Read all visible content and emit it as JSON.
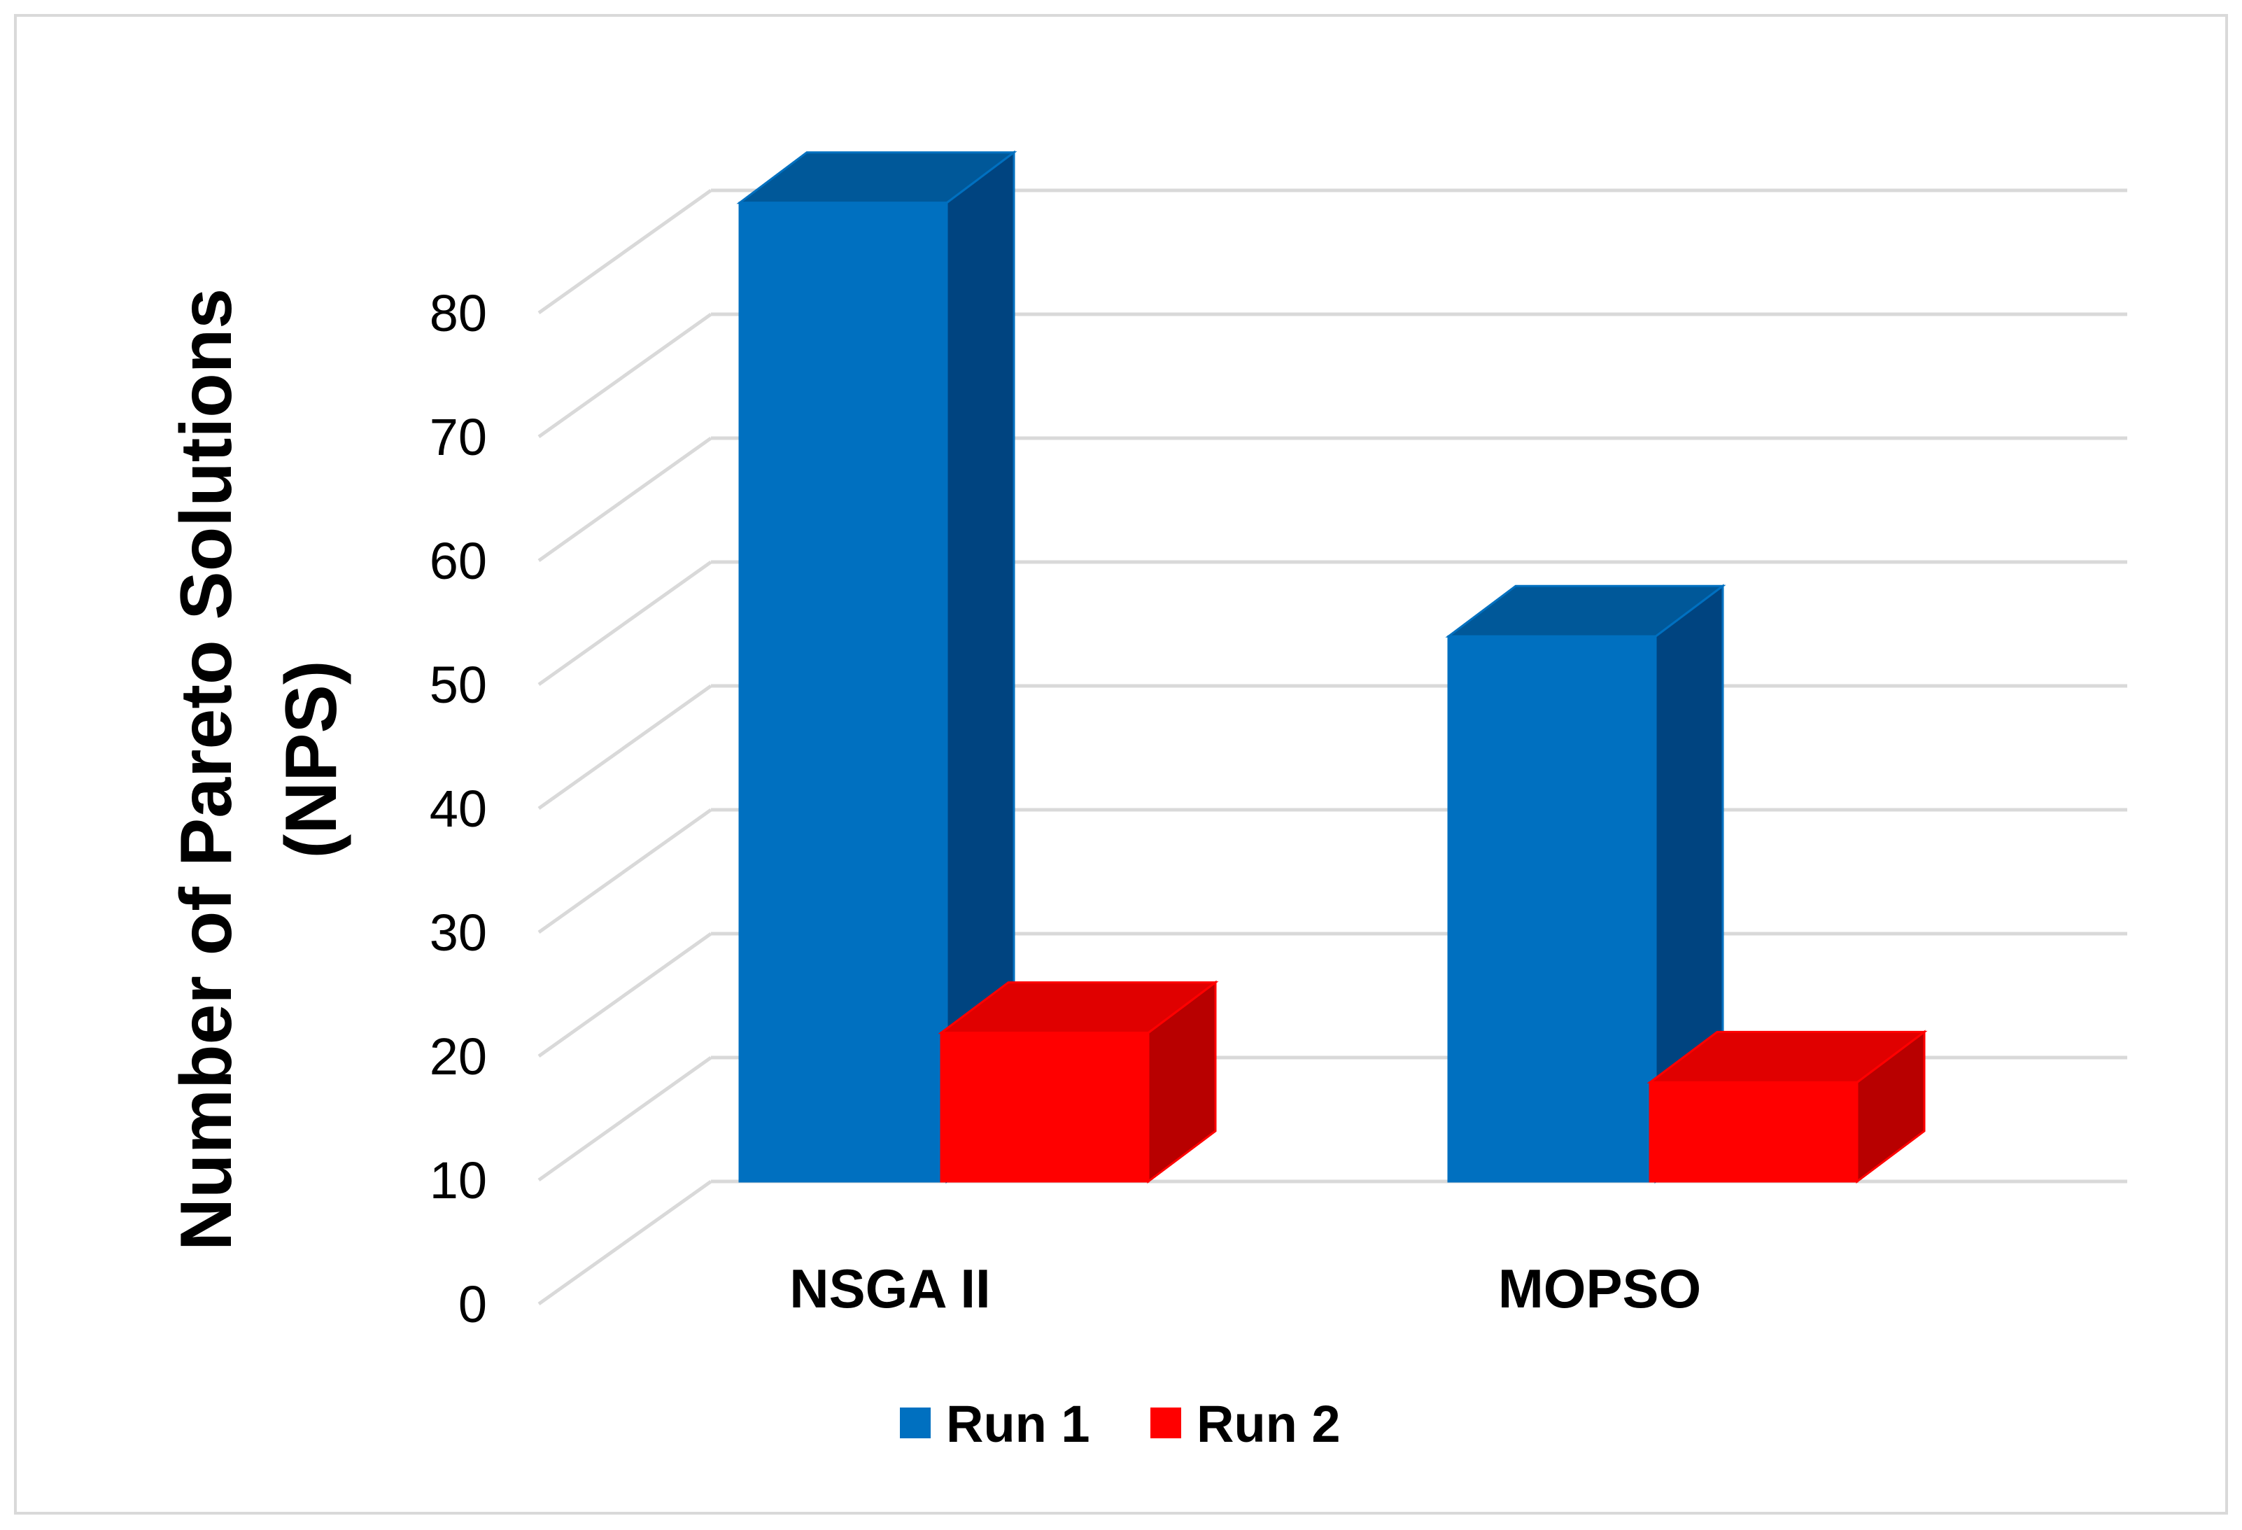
{
  "chart_data": {
    "type": "bar",
    "title": "",
    "categories": [
      "NSGA II",
      "MOPSO"
    ],
    "series": [
      {
        "name": "Run 1",
        "values": [
          79,
          44
        ],
        "color": "#0070C0",
        "side_color": "#004480",
        "top_color": "#005899"
      },
      {
        "name": "Run 2",
        "values": [
          12,
          8
        ],
        "color": "#FF0000",
        "side_color": "#B80000",
        "top_color": "#E00000"
      }
    ],
    "ylabel_lines": [
      "Number of Pareto Solutions",
      "(NPS)"
    ],
    "xlabel": "",
    "ylim": [
      0,
      80
    ],
    "yticks": [
      0,
      10,
      20,
      30,
      40,
      50,
      60,
      70,
      80
    ],
    "grid": true,
    "legend_position": "bottom-center",
    "three_d": true
  }
}
